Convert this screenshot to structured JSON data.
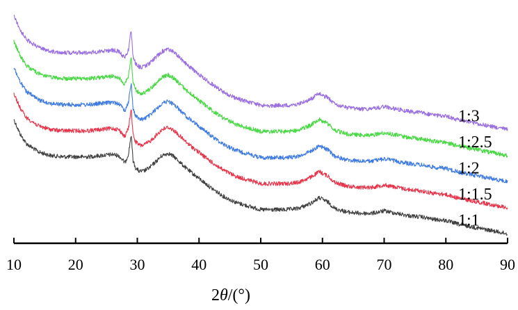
{
  "chart_data": {
    "type": "line",
    "title": "",
    "xlabel": "2θ/(°)",
    "xlabel_parts": {
      "prefix": "2",
      "symbol": "θ",
      "suffix": "/(°)"
    },
    "ylabel": "",
    "xlim": [
      10,
      90
    ],
    "xticks": [
      "10",
      "20",
      "30",
      "40",
      "50",
      "60",
      "70",
      "80",
      "90"
    ],
    "x_tick_values": [
      10,
      20,
      30,
      40,
      50,
      60,
      70,
      80,
      90
    ],
    "y_axis_visible": false,
    "grid": false,
    "legend": "labels beside traces at right",
    "pattern_intensity": {
      "x": [
        10,
        11,
        12,
        14,
        16,
        18,
        20,
        22,
        24,
        26,
        27,
        28,
        28.6,
        29.0,
        29.3,
        29.7,
        30.3,
        31,
        32,
        33,
        34,
        35,
        36,
        37,
        38,
        40,
        42,
        44,
        46,
        48,
        50,
        52,
        54,
        56,
        58,
        59.5,
        61,
        62,
        64,
        66,
        68,
        70,
        72,
        74,
        76,
        78,
        80,
        82,
        84,
        86,
        88,
        90
      ],
      "y": [
        100,
        88,
        80,
        73,
        70,
        69,
        69,
        69,
        70,
        71,
        70,
        64,
        72,
        88,
        66,
        60,
        57,
        57,
        60,
        65,
        70,
        72,
        69,
        64,
        59,
        51,
        43,
        36,
        31,
        28,
        25,
        25,
        25,
        26,
        30,
        35,
        31,
        26,
        23,
        22,
        22,
        24,
        22,
        20,
        19,
        17,
        16,
        13,
        11,
        9,
        7,
        5
      ]
    },
    "series": [
      {
        "name": "1:1",
        "color": "#404040",
        "offset": 0
      },
      {
        "name": "1:1.5",
        "color": "#e8344a",
        "offset": 1
      },
      {
        "name": "1:2",
        "color": "#3f7be0",
        "offset": 2
      },
      {
        "name": "1:2.5",
        "color": "#4ad846",
        "offset": 3
      },
      {
        "name": "1:3",
        "color": "#9a6fe0",
        "offset": 4
      }
    ]
  }
}
